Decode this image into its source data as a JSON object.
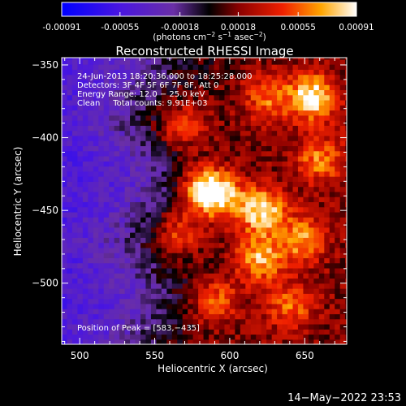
{
  "chart_data": {
    "type": "heatmap",
    "title": "Reconstructed RHESSI Image",
    "xlabel": "Heliocentric X (arcsec)",
    "ylabel": "Heliocentric Y (arcsec)",
    "xlim": [
      488,
      678
    ],
    "ylim": [
      -542,
      -345
    ],
    "xticks": [
      500,
      550,
      600,
      650
    ],
    "xtick_labels": [
      "500",
      "550",
      "600",
      "650"
    ],
    "yticks": [
      -350,
      -400,
      -450,
      -500
    ],
    "ytick_labels": [
      "−350",
      "−400",
      "−450",
      "−500"
    ],
    "colorbar": {
      "range": [
        -0.00091,
        0.00091
      ],
      "ticks": [
        -0.00091,
        -0.00055,
        -0.00018,
        0.00018,
        0.00055,
        0.00091
      ],
      "tick_labels": [
        "-0.00091",
        "-0.00055",
        "-0.00018",
        "0.00018",
        "0.00055",
        "0.00091"
      ],
      "label_main": "(photons cm",
      "label_exp1": "−2",
      "label_mid1": " s",
      "label_exp2": "−1",
      "label_mid2": " asec",
      "label_exp3": "−2",
      "label_end": ")"
    },
    "annotations": [
      "24-Jun-2013 18:20:36.000 to 18:25:28.000",
      "Detectors: 3F 4F 5F 6F 7F 8F, Att 0",
      "Energy Range: 12.0 − 25.0 keV",
      "Clean     Total counts: 9.91E+03"
    ],
    "peak_label": "Position of Peak = [583,−435]",
    "sources": [
      {
        "x": 583,
        "y": -435,
        "amp": 1.0
      },
      {
        "x": 597,
        "y": -441,
        "amp": 0.55
      },
      {
        "x": 622,
        "y": -450,
        "amp": 0.85
      },
      {
        "x": 655,
        "y": -372,
        "amp": 0.9
      },
      {
        "x": 625,
        "y": -372,
        "amp": 0.5
      },
      {
        "x": 620,
        "y": -483,
        "amp": 0.7
      },
      {
        "x": 648,
        "y": -470,
        "amp": 0.6
      },
      {
        "x": 590,
        "y": -512,
        "amp": 0.55
      },
      {
        "x": 640,
        "y": -515,
        "amp": 0.5
      },
      {
        "x": 568,
        "y": -392,
        "amp": 0.45
      },
      {
        "x": 660,
        "y": -415,
        "amp": 0.55
      },
      {
        "x": 565,
        "y": -465,
        "amp": 0.45
      }
    ]
  },
  "footer_timestamp": "14−May−2022 23:53"
}
